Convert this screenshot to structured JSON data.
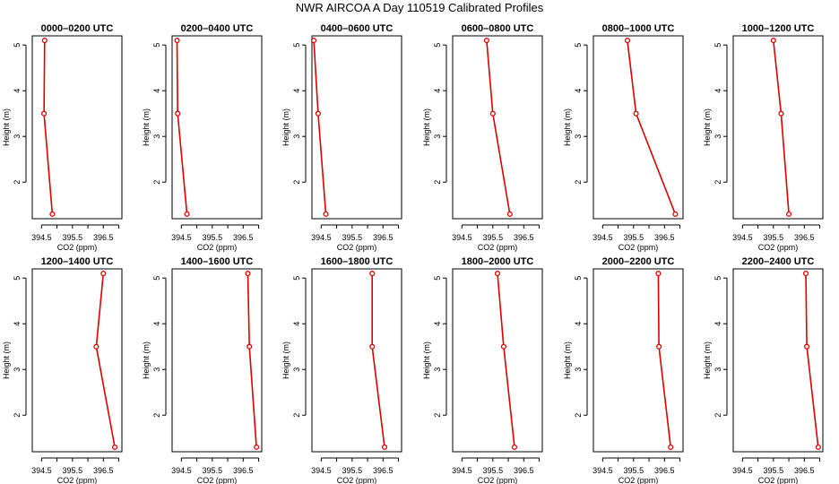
{
  "title": "NWR AIRCOA A  Day 110519  Calibrated Profiles",
  "colors": {
    "series": "#dd0000",
    "axis": "#000000"
  },
  "chart_data": [
    {
      "type": "line",
      "title": "0000–0200 UTC",
      "xlabel": "CO2 (ppm)",
      "ylabel": "Height (m)",
      "xlim": [
        394.2,
        397.1
      ],
      "ylim": [
        1.2,
        5.2
      ],
      "xticks": [
        "394.5",
        "395.5",
        "396.5"
      ],
      "xtick_values": [
        394.5,
        395.0,
        395.5,
        396.0,
        396.5,
        397.0
      ],
      "yticks": [
        2,
        3,
        4,
        5
      ],
      "x": [
        394.6,
        394.58,
        394.85
      ],
      "y": [
        5.1,
        3.5,
        1.3
      ]
    },
    {
      "type": "line",
      "title": "0200–0400 UTC",
      "xlabel": "CO2 (ppm)",
      "ylabel": "Height (m)",
      "xlim": [
        394.2,
        397.1
      ],
      "ylim": [
        1.2,
        5.2
      ],
      "xticks": [
        "394.5",
        "395.5",
        "396.5"
      ],
      "xtick_values": [
        394.5,
        395.0,
        395.5,
        396.0,
        396.5,
        397.0
      ],
      "yticks": [
        2,
        3,
        4,
        5
      ],
      "x": [
        394.36,
        394.38,
        394.68
      ],
      "y": [
        5.1,
        3.5,
        1.3
      ]
    },
    {
      "type": "line",
      "title": "0400–0600 UTC",
      "xlabel": "CO2 (ppm)",
      "ylabel": "Height (m)",
      "xlim": [
        394.2,
        397.1
      ],
      "ylim": [
        1.2,
        5.2
      ],
      "xticks": [
        "394.5",
        "395.5",
        "396.5"
      ],
      "xtick_values": [
        394.5,
        395.0,
        395.5,
        396.0,
        396.5,
        397.0
      ],
      "yticks": [
        2,
        3,
        4,
        5
      ],
      "x": [
        394.26,
        394.4,
        394.65
      ],
      "y": [
        5.1,
        3.5,
        1.3
      ]
    },
    {
      "type": "line",
      "title": "0600–0800 UTC",
      "xlabel": "CO2 (ppm)",
      "ylabel": "Height (m)",
      "xlim": [
        394.2,
        397.1
      ],
      "ylim": [
        1.2,
        5.2
      ],
      "xticks": [
        "394.5",
        "395.5",
        "396.5"
      ],
      "xtick_values": [
        394.5,
        395.0,
        395.5,
        396.0,
        396.5,
        397.0
      ],
      "yticks": [
        2,
        3,
        4,
        5
      ],
      "x": [
        395.3,
        395.5,
        396.05
      ],
      "y": [
        5.1,
        3.5,
        1.3
      ]
    },
    {
      "type": "line",
      "title": "0800–1000 UTC",
      "xlabel": "CO2 (ppm)",
      "ylabel": "Height (m)",
      "xlim": [
        394.2,
        397.1
      ],
      "ylim": [
        1.2,
        5.2
      ],
      "xticks": [
        "394.5",
        "395.5",
        "396.5"
      ],
      "xtick_values": [
        394.5,
        395.0,
        395.5,
        396.0,
        396.5,
        397.0
      ],
      "yticks": [
        2,
        3,
        4,
        5
      ],
      "x": [
        395.3,
        395.58,
        396.85
      ],
      "y": [
        5.1,
        3.5,
        1.3
      ]
    },
    {
      "type": "line",
      "title": "1000–1200 UTC",
      "xlabel": "CO2 (ppm)",
      "ylabel": "Height (m)",
      "xlim": [
        394.2,
        397.1
      ],
      "ylim": [
        1.2,
        5.2
      ],
      "xticks": [
        "394.5",
        "395.5",
        "396.5"
      ],
      "xtick_values": [
        394.5,
        395.0,
        395.5,
        396.0,
        396.5,
        397.0
      ],
      "yticks": [
        2,
        3,
        4,
        5
      ],
      "x": [
        395.5,
        395.75,
        396.0
      ],
      "y": [
        5.1,
        3.5,
        1.3
      ]
    },
    {
      "type": "line",
      "title": "1200–1400 UTC",
      "xlabel": "CO2 (ppm)",
      "ylabel": "Height (m)",
      "xlim": [
        394.2,
        397.1
      ],
      "ylim": [
        1.2,
        5.2
      ],
      "xticks": [
        "394.5",
        "395.5",
        "396.5"
      ],
      "xtick_values": [
        394.5,
        395.0,
        395.5,
        396.0,
        396.5,
        397.0
      ],
      "yticks": [
        2,
        3,
        4,
        5
      ],
      "x": [
        396.5,
        396.27,
        396.87
      ],
      "y": [
        5.1,
        3.5,
        1.3
      ]
    },
    {
      "type": "line",
      "title": "1400–1600 UTC",
      "xlabel": "CO2 (ppm)",
      "ylabel": "Height (m)",
      "xlim": [
        394.2,
        397.1
      ],
      "ylim": [
        1.2,
        5.2
      ],
      "xticks": [
        "394.5",
        "395.5",
        "396.5"
      ],
      "xtick_values": [
        394.5,
        395.0,
        395.5,
        396.0,
        396.5,
        397.0
      ],
      "yticks": [
        2,
        3,
        4,
        5
      ],
      "x": [
        396.65,
        396.7,
        396.93
      ],
      "y": [
        5.1,
        3.5,
        1.3
      ]
    },
    {
      "type": "line",
      "title": "1600–1800 UTC",
      "xlabel": "CO2 (ppm)",
      "ylabel": "Height (m)",
      "xlim": [
        394.2,
        397.1
      ],
      "ylim": [
        1.2,
        5.2
      ],
      "xticks": [
        "394.5",
        "395.5",
        "396.5"
      ],
      "xtick_values": [
        394.5,
        395.0,
        395.5,
        396.0,
        396.5,
        397.0
      ],
      "yticks": [
        2,
        3,
        4,
        5
      ],
      "x": [
        396.15,
        396.15,
        396.55
      ],
      "y": [
        5.1,
        3.5,
        1.3
      ]
    },
    {
      "type": "line",
      "title": "1800–2000 UTC",
      "xlabel": "CO2 (ppm)",
      "ylabel": "Height (m)",
      "xlim": [
        394.2,
        397.1
      ],
      "ylim": [
        1.2,
        5.2
      ],
      "xticks": [
        "394.5",
        "395.5",
        "396.5"
      ],
      "xtick_values": [
        394.5,
        395.0,
        395.5,
        396.0,
        396.5,
        397.0
      ],
      "yticks": [
        2,
        3,
        4,
        5
      ],
      "x": [
        395.65,
        395.85,
        396.2
      ],
      "y": [
        5.1,
        3.5,
        1.3
      ]
    },
    {
      "type": "line",
      "title": "2000–2200 UTC",
      "xlabel": "CO2 (ppm)",
      "ylabel": "Height (m)",
      "xlim": [
        394.2,
        397.1
      ],
      "ylim": [
        1.2,
        5.2
      ],
      "xticks": [
        "394.5",
        "395.5",
        "396.5"
      ],
      "xtick_values": [
        394.5,
        395.0,
        395.5,
        396.0,
        396.5,
        397.0
      ],
      "yticks": [
        2,
        3,
        4,
        5
      ],
      "x": [
        396.3,
        396.32,
        396.7
      ],
      "y": [
        5.1,
        3.5,
        1.3
      ]
    },
    {
      "type": "line",
      "title": "2200–2400 UTC",
      "xlabel": "CO2 (ppm)",
      "ylabel": "Height (m)",
      "xlim": [
        394.2,
        397.1
      ],
      "ylim": [
        1.2,
        5.2
      ],
      "xticks": [
        "394.5",
        "395.5",
        "396.5"
      ],
      "xtick_values": [
        394.5,
        395.0,
        395.5,
        396.0,
        396.5,
        397.0
      ],
      "yticks": [
        2,
        3,
        4,
        5
      ],
      "x": [
        396.55,
        396.58,
        396.95
      ],
      "y": [
        5.1,
        3.5,
        1.3
      ]
    }
  ]
}
